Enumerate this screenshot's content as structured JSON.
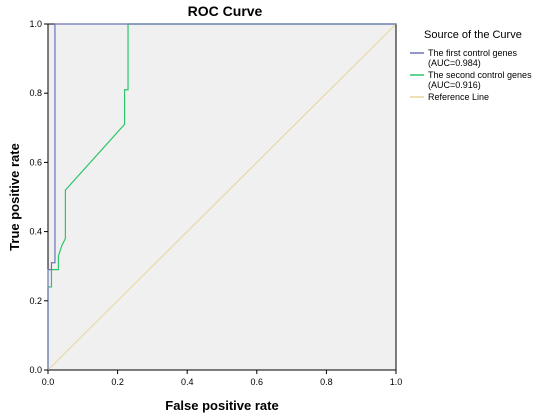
{
  "chart_data": {
    "type": "line",
    "title": "ROC Curve",
    "xlabel": "False positive rate",
    "ylabel": "True positive rate",
    "xlim": [
      0,
      1
    ],
    "ylim": [
      0,
      1
    ],
    "xticks": [
      "0.0",
      "0.2",
      "0.4",
      "0.6",
      "0.8",
      "1.0"
    ],
    "yticks": [
      "0.0",
      "0.2",
      "0.4",
      "0.6",
      "0.8",
      "1.0"
    ],
    "grid": false,
    "background_color": "#f0f0f0",
    "legend": {
      "title": "Source of the Curve",
      "position": "right",
      "entries": [
        {
          "lines": [
            "The first control genes",
            "(AUC=0.984)"
          ],
          "color": "#6d72b8"
        },
        {
          "lines": [
            "The second control genes",
            "(AUC=0.916)"
          ],
          "color": "#2ec46a"
        },
        {
          "lines": [
            "Reference Line"
          ],
          "color": "#e6d59a"
        }
      ]
    },
    "series": [
      {
        "name": "The first control genes",
        "color": "#6d72b8",
        "x": [
          0,
          0,
          0.01,
          0.01,
          0.02,
          0.02,
          1.0
        ],
        "y": [
          0,
          0.29,
          0.29,
          0.31,
          0.31,
          1.0,
          1.0
        ]
      },
      {
        "name": "The second control genes",
        "color": "#2ec46a",
        "x": [
          0,
          0,
          0.01,
          0.01,
          0.03,
          0.03,
          0.04,
          0.05,
          0.05,
          0.22,
          0.22,
          0.23,
          0.23,
          1.0
        ],
        "y": [
          0,
          0.24,
          0.24,
          0.29,
          0.29,
          0.33,
          0.36,
          0.38,
          0.52,
          0.71,
          0.81,
          0.81,
          1.0,
          1.0
        ]
      },
      {
        "name": "Reference Line",
        "color": "#e6d59a",
        "x": [
          0,
          1
        ],
        "y": [
          0,
          1
        ]
      }
    ]
  }
}
